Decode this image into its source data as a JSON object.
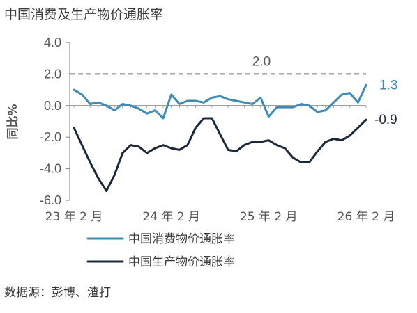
{
  "title": "中国消费及生产物价通胀率",
  "source": "数据源：彭博、渣打",
  "chart_data": {
    "type": "line",
    "ylabel": "同比%",
    "ylim": [
      -6.0,
      4.0
    ],
    "yticks": [
      4.0,
      2.0,
      0.0,
      -2.0,
      -4.0,
      -6.0
    ],
    "ytick_labels": [
      "4.0",
      "2.0",
      "0.0",
      "-2.0",
      "-4.0",
      "-6.0"
    ],
    "xtick_labels": [
      "23 年 2 月",
      "24 年 2 月",
      "25 年 2 月",
      "26 年 2 月"
    ],
    "xtick_index": [
      0,
      12,
      24,
      36
    ],
    "reference_line": {
      "value": 2.0,
      "label": "2.0",
      "style": "dashed"
    },
    "series": [
      {
        "name": "中国消费物价通胀率",
        "color": "#3e8ab8",
        "end_label": "1.3",
        "values": [
          1.0,
          0.7,
          0.1,
          0.2,
          0.0,
          -0.3,
          0.1,
          0.0,
          -0.2,
          -0.5,
          -0.3,
          -0.8,
          0.7,
          0.1,
          0.3,
          0.3,
          0.2,
          0.5,
          0.6,
          0.4,
          0.3,
          0.2,
          0.1,
          0.5,
          -0.7,
          -0.1,
          -0.1,
          -0.1,
          0.1,
          0.0,
          -0.4,
          -0.3,
          0.2,
          0.7,
          0.8,
          0.2,
          1.3
        ]
      },
      {
        "name": "中国生产物价通胀率",
        "color": "#1b2838",
        "end_label": "-0.9",
        "values": [
          -1.4,
          -2.5,
          -3.6,
          -4.6,
          -5.4,
          -4.4,
          -3.0,
          -2.5,
          -2.6,
          -3.0,
          -2.7,
          -2.5,
          -2.7,
          -2.8,
          -2.5,
          -1.4,
          -0.8,
          -0.8,
          -1.8,
          -2.8,
          -2.9,
          -2.5,
          -2.3,
          -2.3,
          -2.2,
          -2.5,
          -2.7,
          -3.3,
          -3.6,
          -3.6,
          -2.9,
          -2.3,
          -2.1,
          -2.2,
          -1.9,
          -1.4,
          -0.9
        ]
      }
    ],
    "legend_position": "bottom-center"
  }
}
